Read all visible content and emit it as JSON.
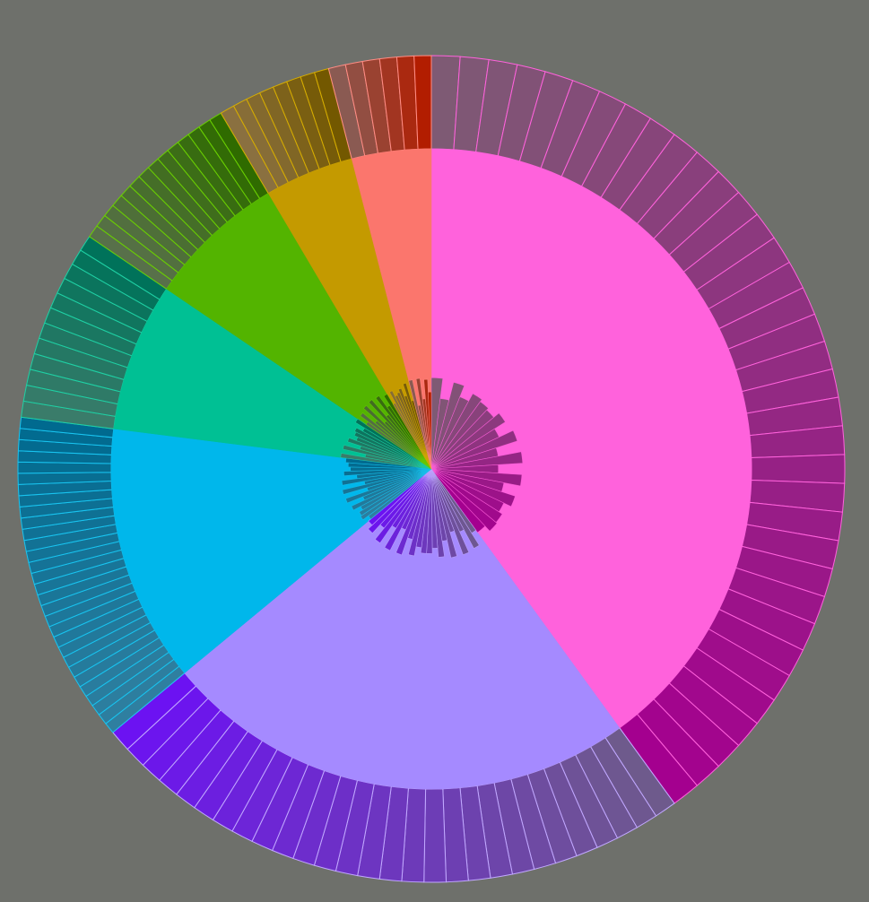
{
  "background": "#6e706b",
  "chart_data": {
    "type": "sunburst",
    "title": "",
    "start_angle_deg": 0,
    "direction": "clockwise",
    "categories": [
      {
        "name": "",
        "value": 40.0,
        "color": "#ff62dc",
        "ring_light": "#7e5a74",
        "ring_dark": "#a4008f",
        "ring_stroke": "#ff62dc",
        "children": 36,
        "inner_children": 20
      },
      {
        "name": "",
        "value": 24.0,
        "color": "#a58aff",
        "ring_light": "#6e5a8c",
        "ring_dark": "#6c12f2",
        "ring_stroke": "#c1a8ff",
        "children": 28,
        "inner_children": 22
      },
      {
        "name": "",
        "value": 13.0,
        "color": "#00b7eb",
        "ring_light": "#2f7fa0",
        "ring_dark": "#006a8f",
        "ring_stroke": "#18c4f0",
        "children": 30,
        "inner_children": 16
      },
      {
        "name": "",
        "value": 7.5,
        "color": "#00c094",
        "ring_light": "#3a7c6a",
        "ring_dark": "#00725a",
        "ring_stroke": "#1fd0a4",
        "children": 12,
        "inner_children": 10
      },
      {
        "name": "",
        "value": 7.0,
        "color": "#53b400",
        "ring_light": "#58704a",
        "ring_dark": "#2f6b00",
        "ring_stroke": "#6ad000",
        "children": 14,
        "inner_children": 10
      },
      {
        "name": "",
        "value": 4.5,
        "color": "#c49a00",
        "ring_light": "#8a7040",
        "ring_dark": "#735800",
        "ring_stroke": "#d6ad00",
        "children": 8,
        "inner_children": 8
      },
      {
        "name": "",
        "value": 4.0,
        "color": "#fb766d",
        "ring_light": "#8a5a52",
        "ring_dark": "#b21d00",
        "ring_stroke": "#ff8c84",
        "children": 6,
        "inner_children": 6
      }
    ]
  }
}
